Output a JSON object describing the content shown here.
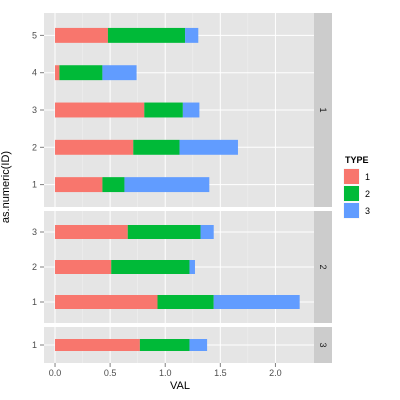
{
  "chart_data": {
    "type": "bar",
    "orientation": "horizontal",
    "stacked": true,
    "xlabel": "VAL",
    "ylabel": "as.numeric(ID)",
    "xlim": [
      -0.1,
      2.35
    ],
    "xticks": [
      0.0,
      0.5,
      1.0,
      1.5,
      2.0
    ],
    "xtick_labels": [
      "0.0",
      "0.5",
      "1.0",
      "1.5",
      "2.0"
    ],
    "grid": true,
    "legend": {
      "title": "TYPE",
      "position": "right",
      "entries": [
        {
          "label": "1",
          "color": "#F8766D"
        },
        {
          "label": "2",
          "color": "#00BA38"
        },
        {
          "label": "3",
          "color": "#619CFF"
        }
      ]
    },
    "series_names": [
      "1",
      "2",
      "3"
    ],
    "series_colors": [
      "#F8766D",
      "#00BA38",
      "#619CFF"
    ],
    "panels": [
      {
        "facet": "1",
        "ylim": [
          0.4,
          5.6
        ],
        "rows": [
          {
            "id": 5,
            "values": [
              0.48,
              0.7,
              0.12
            ]
          },
          {
            "id": 4,
            "values": [
              0.04,
              0.39,
              0.31
            ]
          },
          {
            "id": 3,
            "values": [
              0.81,
              0.35,
              0.15
            ]
          },
          {
            "id": 2,
            "values": [
              0.71,
              0.42,
              0.53
            ]
          },
          {
            "id": 1,
            "values": [
              0.43,
              0.2,
              0.77
            ]
          }
        ]
      },
      {
        "facet": "2",
        "ylim": [
          0.4,
          3.6
        ],
        "rows": [
          {
            "id": 3,
            "values": [
              0.66,
              0.66,
              0.12
            ]
          },
          {
            "id": 2,
            "values": [
              0.51,
              0.71,
              0.05
            ]
          },
          {
            "id": 1,
            "values": [
              0.93,
              0.51,
              0.78
            ]
          }
        ]
      },
      {
        "facet": "3",
        "ylim": [
          0.4,
          1.6
        ],
        "rows": [
          {
            "id": 1,
            "values": [
              0.77,
              0.45,
              0.16
            ]
          }
        ]
      }
    ]
  }
}
